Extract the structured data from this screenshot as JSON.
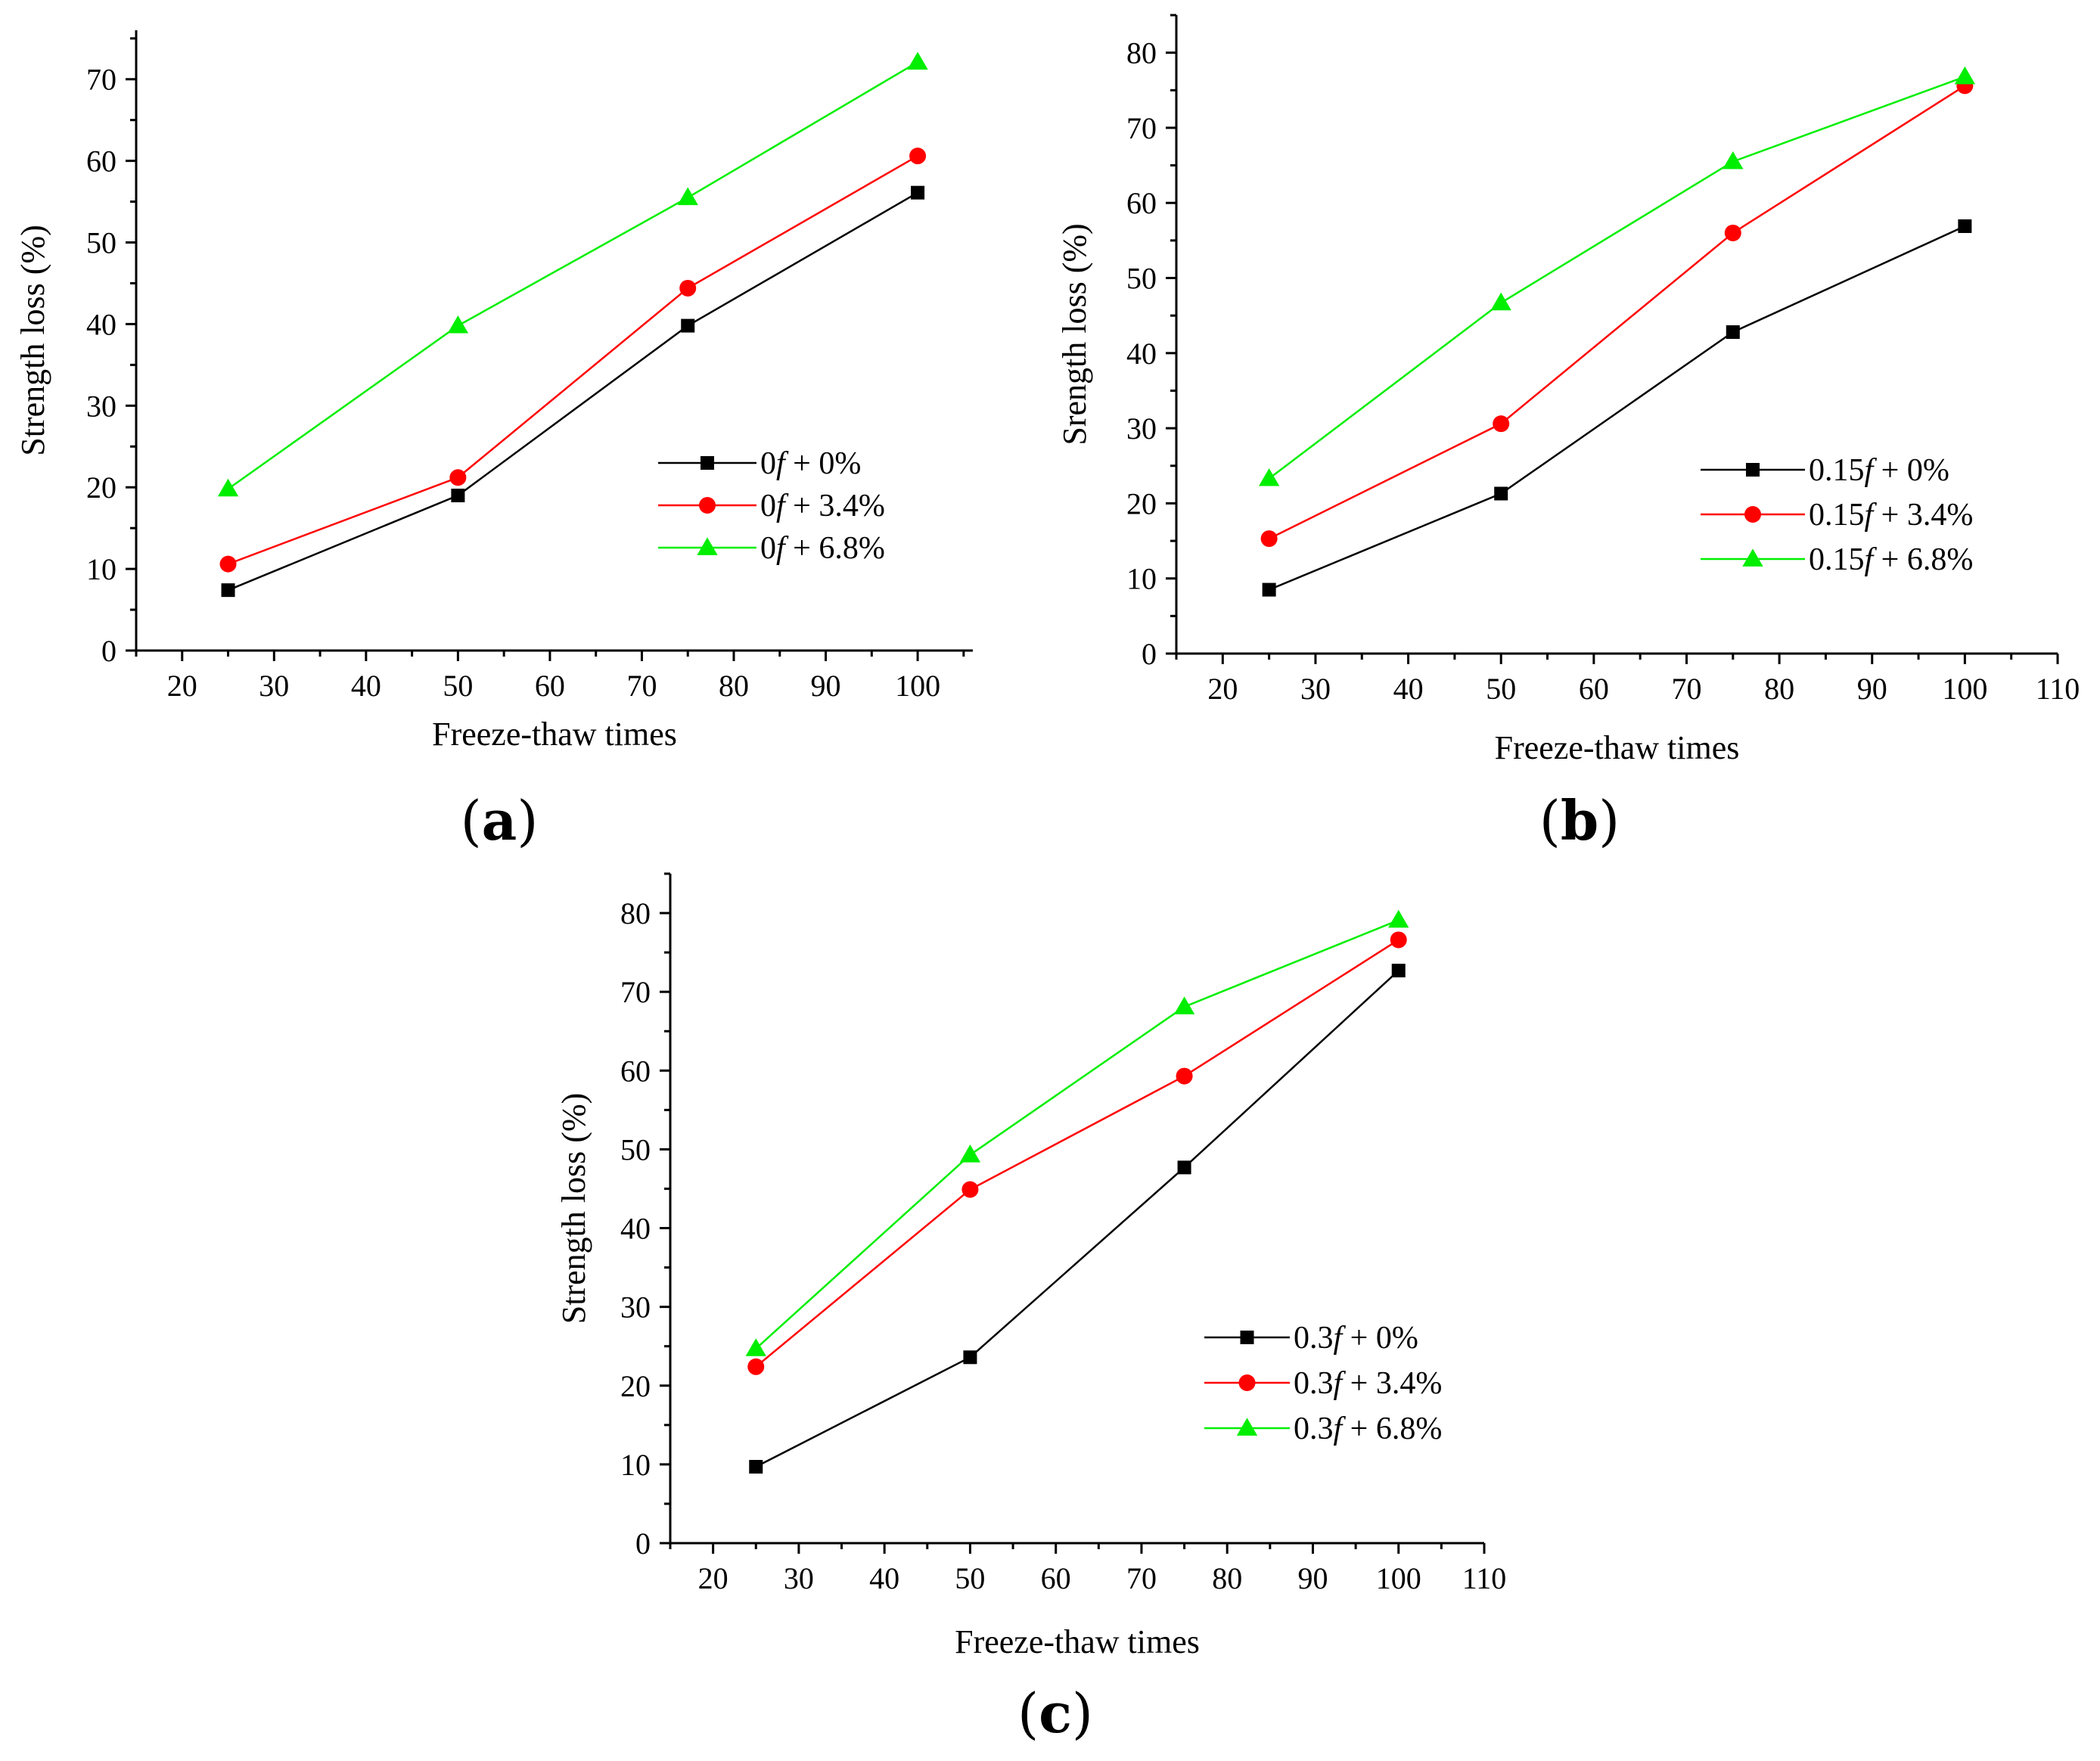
{
  "colors": {
    "black": "#000000",
    "red": "#ff0000",
    "green": "#00ee00"
  },
  "chart_data": [
    {
      "type": "line",
      "panel_label": "a",
      "xlabel": "Freeze-thaw times",
      "ylabel": "Strength loss  (%)",
      "xlim": [
        15,
        106
      ],
      "ylim": [
        0,
        76
      ],
      "x_ticks": [
        20,
        30,
        40,
        50,
        60,
        70,
        80,
        90,
        100
      ],
      "y_ticks": [
        0,
        10,
        20,
        30,
        40,
        50,
        60,
        70
      ],
      "legend_position": "right",
      "x": [
        25,
        50,
        75,
        100
      ],
      "series": [
        {
          "prefix": "0",
          "suffix": " + 0%",
          "marker": "square",
          "color": "black",
          "values": [
            7.4,
            19.0,
            39.8,
            56.1
          ]
        },
        {
          "prefix": "0",
          "suffix": " + 3.4%",
          "marker": "circle",
          "color": "red",
          "values": [
            10.6,
            21.2,
            44.4,
            60.6
          ]
        },
        {
          "prefix": "0",
          "suffix": " + 6.8%",
          "marker": "triangle",
          "color": "green",
          "values": [
            19.8,
            39.8,
            55.5,
            72.1
          ]
        }
      ]
    },
    {
      "type": "line",
      "panel_label": "b",
      "xlabel": "Freeze-thaw times",
      "ylabel": "Srength loss  (%)",
      "xlim": [
        15,
        110
      ],
      "ylim": [
        0,
        85
      ],
      "x_ticks": [
        20,
        30,
        40,
        50,
        60,
        70,
        80,
        90,
        100,
        110
      ],
      "y_ticks": [
        0,
        10,
        20,
        30,
        40,
        50,
        60,
        70,
        80
      ],
      "legend_position": "right",
      "x": [
        25,
        50,
        75,
        100
      ],
      "series": [
        {
          "prefix": "0.15",
          "suffix": " + 0%",
          "marker": "square",
          "color": "black",
          "values": [
            8.5,
            21.3,
            42.8,
            56.9
          ]
        },
        {
          "prefix": "0.15",
          "suffix": " + 3.4%",
          "marker": "circle",
          "color": "red",
          "values": [
            15.3,
            30.6,
            56.0,
            75.6
          ]
        },
        {
          "prefix": "0.15",
          "suffix": " + 6.8%",
          "marker": "triangle",
          "color": "green",
          "values": [
            23.3,
            46.7,
            65.5,
            76.8
          ]
        }
      ]
    },
    {
      "type": "line",
      "panel_label": "c",
      "xlabel": "Freeze-thaw times",
      "ylabel": "Strength loss  (%)",
      "xlim": [
        15,
        110
      ],
      "ylim": [
        0,
        85
      ],
      "x_ticks": [
        20,
        30,
        40,
        50,
        60,
        70,
        80,
        90,
        100,
        110
      ],
      "y_ticks": [
        0,
        10,
        20,
        30,
        40,
        50,
        60,
        70,
        80
      ],
      "legend_position": "bottom-right",
      "x": [
        25,
        50,
        75,
        100
      ],
      "series": [
        {
          "prefix": "0.3",
          "suffix": " + 0%",
          "marker": "square",
          "color": "black",
          "values": [
            9.7,
            23.6,
            47.7,
            72.7
          ]
        },
        {
          "prefix": "0.3",
          "suffix": " + 3.4%",
          "marker": "circle",
          "color": "red",
          "values": [
            22.4,
            44.9,
            59.3,
            76.6
          ]
        },
        {
          "prefix": "0.3",
          "suffix": " + 6.8%",
          "marker": "triangle",
          "color": "green",
          "values": [
            24.7,
            49.3,
            68.1,
            79.1
          ]
        }
      ]
    }
  ]
}
